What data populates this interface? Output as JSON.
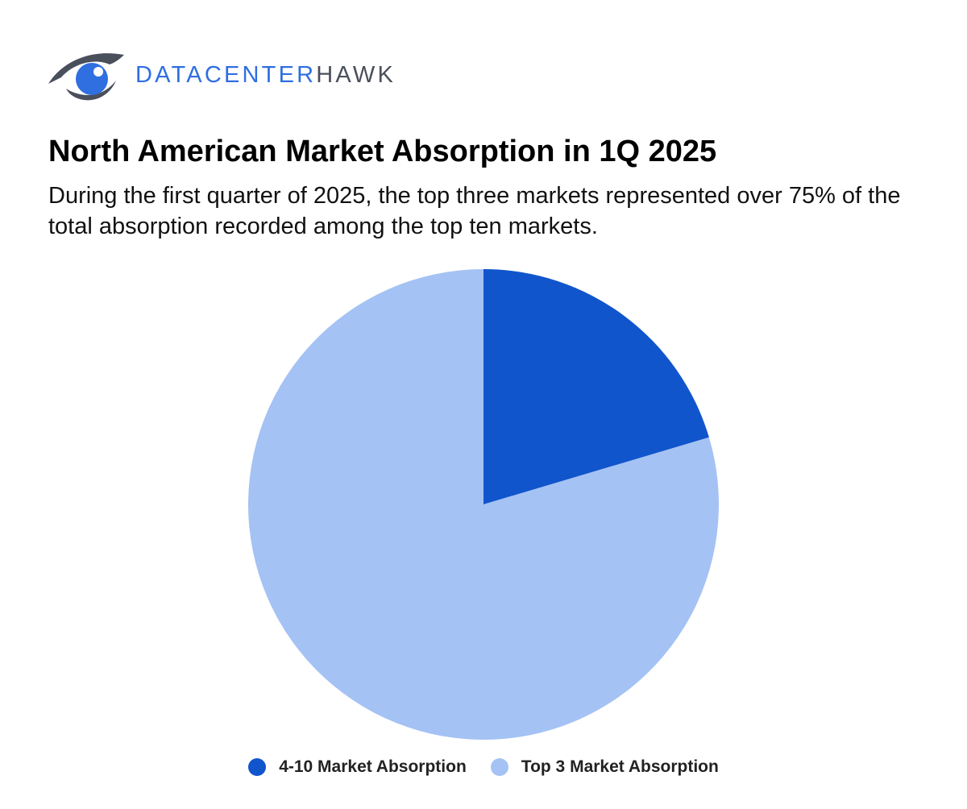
{
  "brand": {
    "name_part1": "DATACENTER",
    "name_part2": "HAWK",
    "icon": "hawk-eye-logo-icon",
    "colors": {
      "primary": "#2f6fe0",
      "secondary": "#4a4f5c"
    }
  },
  "header": {
    "title": "North American Market Absorption in 1Q 2025",
    "subtitle": "During the first quarter of 2025, the top three markets represented over 75% of the total absorption recorded among the top ten markets."
  },
  "chart_data": {
    "type": "pie",
    "title": "North American Market Absorption in 1Q 2025",
    "start_angle_deg": 0,
    "direction": "clockwise",
    "legend_position": "bottom-center",
    "slices": [
      {
        "label": "4-10 Market Absorption",
        "value": 20.4,
        "color": "#1155cc"
      },
      {
        "label": "Top 3 Market Absorption",
        "value": 79.6,
        "color": "#a4c2f4"
      }
    ]
  }
}
